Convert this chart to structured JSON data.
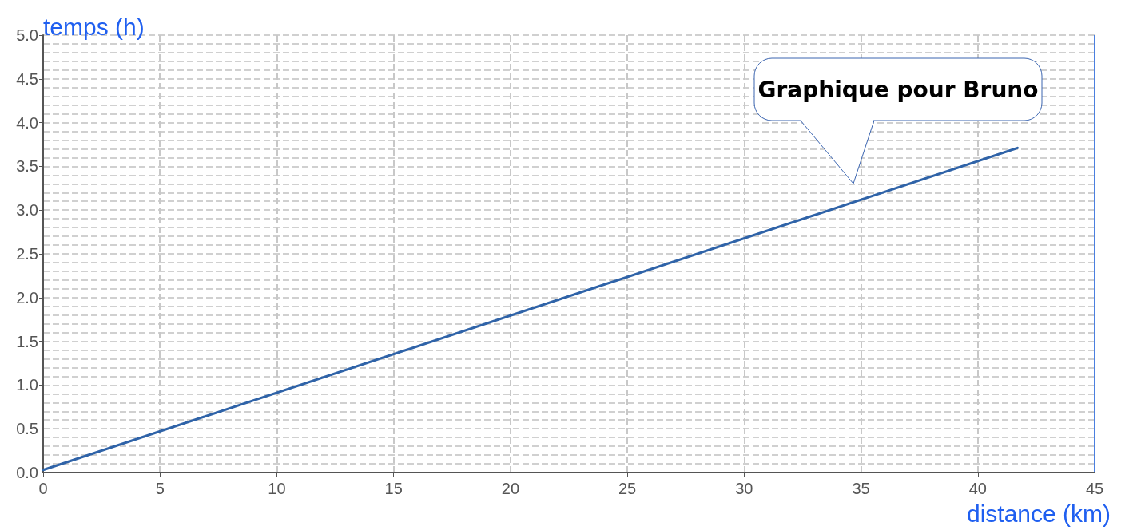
{
  "chart_data": {
    "type": "line",
    "xlabel": "distance (km)",
    "ylabel": "temps (h)",
    "x": [
      0,
      41.7
    ],
    "series": [
      {
        "color": "#2f63a8",
        "values": [
          0.03,
          3.71
        ]
      }
    ],
    "xlim": [
      0,
      45
    ],
    "xticks": [
      0,
      5,
      10,
      15,
      20,
      25,
      30,
      35,
      40,
      45
    ],
    "ylim": [
      0,
      5
    ],
    "yticks": [
      {
        "value": 0,
        "label": "0.0"
      },
      {
        "value": 0.5,
        "label": "0.5"
      },
      {
        "value": 1,
        "label": "1.0"
      },
      {
        "value": 1.5,
        "label": "1.5"
      },
      {
        "value": 2,
        "label": "2.0"
      },
      {
        "value": 2.5,
        "label": "2.5"
      },
      {
        "value": 3,
        "label": "3.0"
      },
      {
        "value": 3.5,
        "label": "3.5"
      },
      {
        "value": 4,
        "label": "4.0"
      },
      {
        "value": 4.5,
        "label": "4.5"
      },
      {
        "value": 5,
        "label": "5.0"
      }
    ],
    "grid": true,
    "marker": "none",
    "line_style": "solid",
    "annotations": [
      "Graphique pour Bruno"
    ]
  }
}
